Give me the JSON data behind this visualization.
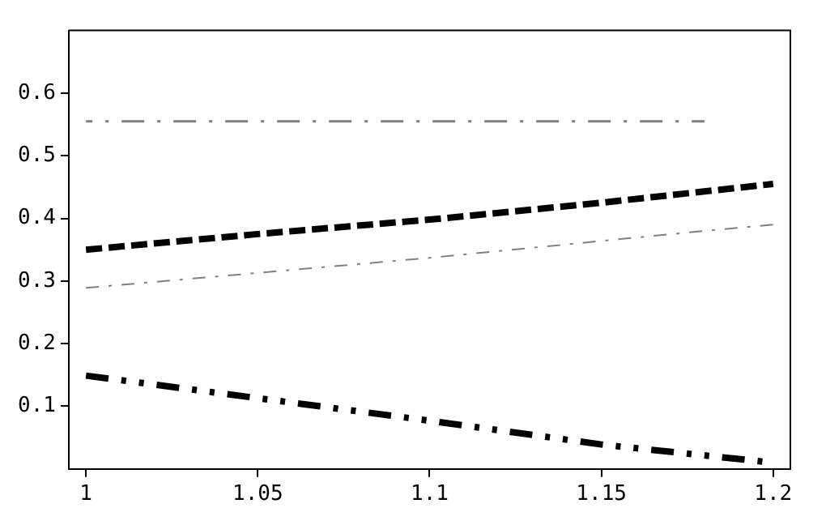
{
  "chart_data": {
    "type": "line",
    "xlim": [
      0.995,
      1.205
    ],
    "ylim": [
      0,
      0.7
    ],
    "xticks": [
      {
        "value": 1,
        "label": "1"
      },
      1.05,
      {
        "value": 1.1,
        "label": "1.1"
      },
      1.15,
      {
        "value": 1.2,
        "label": "1.2"
      }
    ],
    "yticks": [
      0.1,
      0.2,
      0.3,
      0.4,
      0.5,
      0.6
    ],
    "grid": false,
    "legend": false,
    "marker": "none",
    "line_style": "dashed",
    "series": [
      {
        "color": "#808080",
        "x": [
          1,
          1.18
        ],
        "values": [
          0.555,
          0.555
        ]
      },
      {
        "color": "#000000",
        "x": [
          1,
          1.05,
          1.1,
          1.15,
          1.2
        ],
        "values": [
          0.35,
          0.375,
          0.398,
          0.425,
          0.455
        ]
      },
      {
        "color": "#808080",
        "x": [
          1,
          1.05,
          1.1,
          1.15,
          1.18,
          1.2
        ],
        "values": [
          0.289,
          0.313,
          0.337,
          0.364,
          0.38,
          0.39
        ]
      },
      {
        "color": "#000000",
        "x": [
          1,
          1.05,
          1.1,
          1.15,
          1.2
        ],
        "values": [
          0.149,
          0.113,
          0.077,
          0.039,
          0.01
        ]
      }
    ]
  }
}
